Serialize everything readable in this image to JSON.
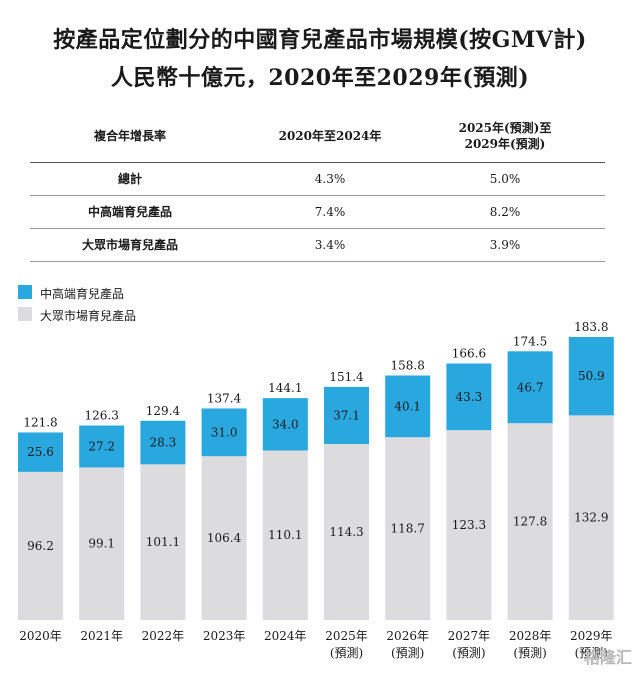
{
  "title_line1": "按產品定位劃分的中國育兒產品市場規模(按GMV計)",
  "title_line2": "人民幣十億元，2020年至2029年(預測)",
  "cagr_table": {
    "header": [
      "複合年增長率",
      "2020年至2024年",
      "2025年(預測)至\n2029年(預測)"
    ],
    "rows": [
      {
        "label": "總計",
        "v1": "4.3%",
        "v2": "5.0%"
      },
      {
        "label": "中高端育兒產品",
        "v1": "7.4%",
        "v2": "8.2%"
      },
      {
        "label": "大眾市場育兒產品",
        "v1": "3.4%",
        "v2": "3.9%"
      }
    ]
  },
  "watermark": "格隆汇",
  "colors": {
    "premium": "#29a8e0",
    "mass": "#dcdcdf",
    "text": "#1a1a1a"
  },
  "chart_data": {
    "type": "bar",
    "stacked": true,
    "categories": [
      "2020年",
      "2021年",
      "2022年",
      "2023年",
      "2024年",
      "2025年\n(預測)",
      "2026年\n(預測)",
      "2027年\n(預測)",
      "2028年\n(預測)",
      "2029年\n(預測)"
    ],
    "series": [
      {
        "name": "大眾市場育兒產品",
        "values": [
          96.2,
          99.1,
          101.1,
          106.4,
          110.1,
          114.3,
          118.7,
          123.3,
          127.8,
          132.9
        ]
      },
      {
        "name": "中高端育兒產品",
        "values": [
          25.6,
          27.2,
          28.3,
          31.0,
          34.0,
          37.1,
          40.1,
          43.3,
          46.7,
          50.9
        ]
      }
    ],
    "totals": [
      121.8,
      126.3,
      129.4,
      137.4,
      144.1,
      151.4,
      158.8,
      166.6,
      174.5,
      183.8
    ],
    "legend": [
      "中高端育兒產品",
      "大眾市場育兒產品"
    ],
    "legend_position": "top-left",
    "ylim": [
      0,
      183.8
    ]
  }
}
